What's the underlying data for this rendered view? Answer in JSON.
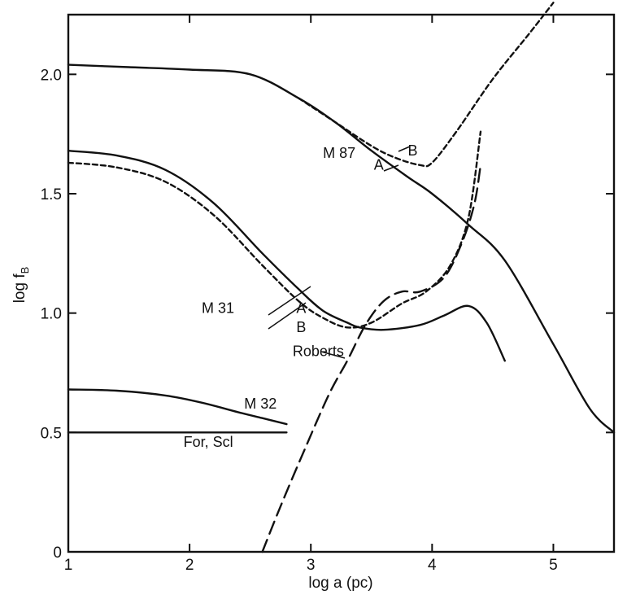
{
  "chart_data": {
    "type": "line",
    "title": "",
    "xlabel": "log a (pc)",
    "ylabel": "log f",
    "ylabel_subscript": "B",
    "xlim": [
      1,
      5.5
    ],
    "ylim": [
      0,
      2.25
    ],
    "xticks": [
      1,
      2,
      3,
      4,
      5
    ],
    "yticks": [
      0,
      0.5,
      1.0,
      1.5,
      2.0
    ],
    "xtick_labels": [
      "1",
      "2",
      "3",
      "4",
      "5"
    ],
    "ytick_labels": [
      "0",
      "0.5",
      "1.0",
      "1.5",
      "2.0"
    ],
    "grid": false,
    "series": [
      {
        "name": "M 87 A",
        "style": "solid",
        "x": [
          1.0,
          1.5,
          2.0,
          2.5,
          2.9,
          3.2,
          3.5,
          3.8,
          4.0,
          4.3,
          4.6,
          5.0,
          5.3,
          5.5
        ],
        "y": [
          2.04,
          2.03,
          2.02,
          2.0,
          1.9,
          1.8,
          1.68,
          1.57,
          1.5,
          1.37,
          1.22,
          0.87,
          0.6,
          0.5
        ]
      },
      {
        "name": "M 87 B",
        "style": "dashed",
        "x": [
          2.9,
          3.2,
          3.5,
          3.7,
          3.9,
          4.0,
          4.2,
          4.5,
          4.8,
          5.0
        ],
        "y": [
          1.9,
          1.8,
          1.7,
          1.65,
          1.62,
          1.63,
          1.76,
          1.98,
          2.17,
          2.3
        ]
      },
      {
        "name": "M 31 A",
        "style": "solid",
        "x": [
          1.0,
          1.4,
          1.8,
          2.2,
          2.6,
          2.9,
          3.1,
          3.3,
          3.4,
          3.6,
          3.9,
          4.1,
          4.3,
          4.45,
          4.6
        ],
        "y": [
          1.68,
          1.66,
          1.6,
          1.46,
          1.25,
          1.1,
          1.01,
          0.96,
          0.94,
          0.93,
          0.95,
          0.99,
          1.03,
          0.96,
          0.8
        ]
      },
      {
        "name": "M 31 B",
        "style": "dashed",
        "x": [
          1.0,
          1.4,
          1.8,
          2.2,
          2.6,
          2.9,
          3.1,
          3.3,
          3.5,
          3.75,
          3.95,
          4.15,
          4.3,
          4.4
        ],
        "y": [
          1.63,
          1.61,
          1.55,
          1.41,
          1.2,
          1.05,
          0.98,
          0.94,
          0.96,
          1.04,
          1.09,
          1.2,
          1.4,
          1.76
        ]
      },
      {
        "name": "Roberts",
        "style": "long-dash",
        "x": [
          2.6,
          2.75,
          2.95,
          3.15,
          3.3,
          3.45,
          3.6,
          3.75,
          3.9,
          4.1,
          4.25,
          4.35,
          4.4
        ],
        "y": [
          0.0,
          0.19,
          0.43,
          0.66,
          0.8,
          0.95,
          1.05,
          1.09,
          1.09,
          1.15,
          1.3,
          1.46,
          1.62
        ]
      },
      {
        "name": "M 32",
        "style": "solid",
        "x": [
          1.0,
          1.4,
          1.8,
          2.1,
          2.4,
          2.6,
          2.8
        ],
        "y": [
          0.68,
          0.675,
          0.655,
          0.625,
          0.585,
          0.56,
          0.535
        ]
      },
      {
        "name": "For, Scl",
        "style": "solid",
        "x": [
          1.0,
          2.8
        ],
        "y": [
          0.5,
          0.5
        ]
      }
    ],
    "annotations": [
      {
        "text": "M 87",
        "x": 3.1,
        "y": 1.65
      },
      {
        "text": "A",
        "x": 3.52,
        "y": 1.6
      },
      {
        "text": "B",
        "x": 3.8,
        "y": 1.66
      },
      {
        "text": "M 31",
        "x": 2.1,
        "y": 1.0
      },
      {
        "text": "A",
        "x": 2.88,
        "y": 1.0
      },
      {
        "text": "B",
        "x": 2.88,
        "y": 0.92
      },
      {
        "text": "Roberts",
        "x": 2.85,
        "y": 0.82
      },
      {
        "text": "M 32",
        "x": 2.45,
        "y": 0.6
      },
      {
        "text": "For, Scl",
        "x": 1.95,
        "y": 0.44
      }
    ]
  }
}
